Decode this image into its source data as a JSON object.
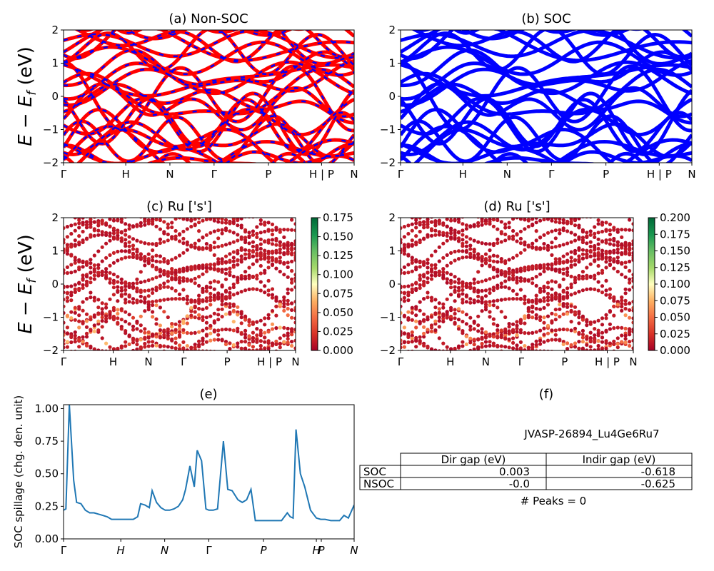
{
  "chart_data": [
    {
      "id": "a",
      "type": "line",
      "title": "(a) Non-SOC",
      "ylabel": "E − E_f (eV)",
      "ylim": [
        -2,
        2
      ],
      "yticks": [
        "2",
        "1",
        "0",
        "−1",
        "−2"
      ],
      "xticks": [
        "Γ",
        "H",
        "N",
        "Γ",
        "P",
        "H | P",
        "N"
      ],
      "colors": [
        "#ff0000",
        "#0000ff"
      ]
    },
    {
      "id": "b",
      "type": "line",
      "title": "(b) SOC",
      "ylim": [
        -2,
        2
      ],
      "yticks": [
        "2",
        "1",
        "0",
        "−1",
        "−2"
      ],
      "xticks": [
        "Γ",
        "H",
        "N",
        "Γ",
        "P",
        "H | P",
        "N"
      ],
      "colors": [
        "#0000ff"
      ]
    },
    {
      "id": "c",
      "type": "scatter",
      "title": "(c)  Ru ['s']",
      "ylabel": "E − E_f (eV)",
      "ylim": [
        -2,
        2
      ],
      "yticks": [
        "2",
        "1",
        "0",
        "−1",
        "−2"
      ],
      "xticks": [
        "Γ",
        "H",
        "N",
        "Γ",
        "P",
        "H | P",
        "N"
      ],
      "colorbar": {
        "min": 0,
        "max": 0.175,
        "ticks": [
          "0.175",
          "0.150",
          "0.125",
          "0.100",
          "0.075",
          "0.050",
          "0.025",
          "0.000"
        ]
      }
    },
    {
      "id": "d",
      "type": "scatter",
      "title": "(d) Ru ['s']",
      "ylim": [
        -2,
        2
      ],
      "yticks": [
        "2",
        "1",
        "0",
        "−1",
        "−2"
      ],
      "xticks": [
        "Γ",
        "H",
        "N",
        "Γ",
        "P",
        "H | P",
        "N"
      ],
      "colorbar": {
        "min": 0,
        "max": 0.2,
        "ticks": [
          "0.200",
          "0.175",
          "0.150",
          "0.125",
          "0.100",
          "0.075",
          "0.050",
          "0.025",
          "0.000"
        ]
      }
    },
    {
      "id": "e",
      "type": "line",
      "title": "(e)",
      "ylabel": "SOC spillage (chg. den. unit)",
      "ylim": [
        0,
        1.03
      ],
      "yticks": [
        "1.00",
        "0.75",
        "0.50",
        "0.25",
        "0.00"
      ],
      "xticks": [
        "Γ",
        "H",
        "N",
        "Γ",
        "P",
        "H",
        "P",
        "N"
      ],
      "color": "#1f77b4",
      "x": [
        0.0,
        0.008,
        0.02,
        0.035,
        0.045,
        0.06,
        0.075,
        0.09,
        0.105,
        0.12,
        0.135,
        0.15,
        0.165,
        0.18,
        0.2,
        0.22,
        0.24,
        0.255,
        0.265,
        0.28,
        0.295,
        0.305,
        0.32,
        0.335,
        0.35,
        0.365,
        0.38,
        0.395,
        0.41,
        0.42,
        0.435,
        0.45,
        0.46,
        0.475,
        0.49,
        0.5,
        0.515,
        0.53,
        0.55,
        0.565,
        0.58,
        0.6,
        0.615,
        0.63,
        0.645,
        0.66,
        0.7,
        0.72,
        0.74,
        0.75,
        0.77,
        0.78,
        0.79,
        0.8,
        0.815,
        0.83,
        0.85,
        0.87,
        0.885,
        0.9,
        0.92,
        0.935,
        0.95,
        0.965,
        0.98,
        1.0
      ],
      "y": [
        0.22,
        0.23,
        1.03,
        0.45,
        0.28,
        0.27,
        0.22,
        0.2,
        0.2,
        0.19,
        0.18,
        0.17,
        0.15,
        0.15,
        0.15,
        0.15,
        0.15,
        0.17,
        0.27,
        0.26,
        0.24,
        0.37,
        0.28,
        0.24,
        0.22,
        0.22,
        0.23,
        0.25,
        0.3,
        0.38,
        0.56,
        0.4,
        0.68,
        0.6,
        0.23,
        0.22,
        0.22,
        0.23,
        0.75,
        0.38,
        0.37,
        0.3,
        0.28,
        0.3,
        0.38,
        0.14,
        0.14,
        0.14,
        0.14,
        0.14,
        0.2,
        0.17,
        0.16,
        0.84,
        0.5,
        0.4,
        0.22,
        0.16,
        0.15,
        0.15,
        0.14,
        0.14,
        0.14,
        0.18,
        0.16,
        0.26
      ]
    }
  ],
  "table": {
    "title": "(f)",
    "material": "JVASP-26894_Lu4Ge6Ru7",
    "headers": [
      "Dir gap (eV)",
      "Indir gap (eV)"
    ],
    "rows": [
      {
        "label": "SOC",
        "dir": "0.003",
        "indir": "-0.618"
      },
      {
        "label": "NSOC",
        "dir": "-0.0",
        "indir": "-0.625"
      }
    ],
    "peaks": "# Peaks = 0"
  }
}
